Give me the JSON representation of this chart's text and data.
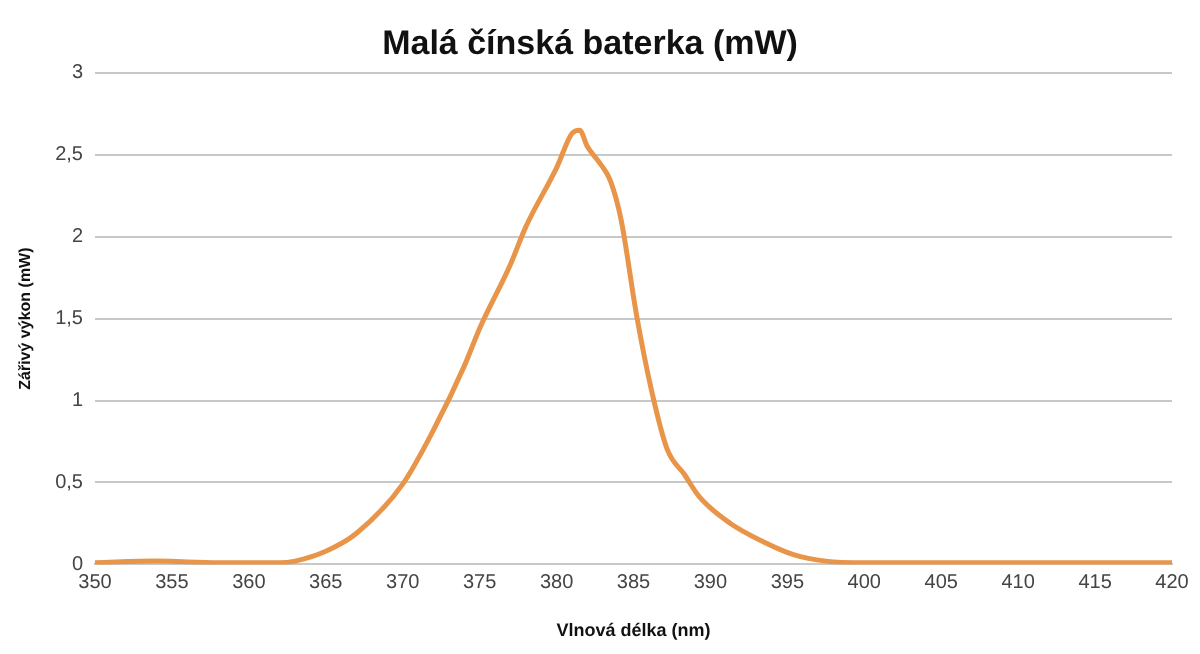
{
  "chart_data": {
    "type": "line",
    "title": "Malá čínská baterka (mW)",
    "xlabel": "Vlnová délka (nm)",
    "ylabel": "Zářivý výkon (mW)",
    "xlim": [
      350,
      420
    ],
    "xticks": [
      350,
      355,
      360,
      365,
      370,
      375,
      380,
      385,
      390,
      395,
      400,
      405,
      410,
      415,
      420
    ],
    "ylim": [
      0,
      3
    ],
    "yticks": [
      0,
      {
        "value": 0.5,
        "label": "0,5"
      },
      1,
      {
        "value": 1.5,
        "label": "1,5"
      },
      2,
      {
        "value": 2.5,
        "label": "2,5"
      },
      3
    ],
    "grid": "y",
    "legend": false,
    "marker": "none",
    "line_style": "solid",
    "series": [
      {
        "color": "#e8954a",
        "x": [
          350,
          354,
          358,
          362,
          363,
          365,
          367,
          370,
          372,
          374,
          375,
          377,
          378,
          380,
          381,
          381.5,
          382,
          382.8,
          383.5,
          384.2,
          385.2,
          386.2,
          387.2,
          388.3,
          389.3,
          391.3,
          393.4,
          395.4,
          397.5,
          400,
          405,
          410,
          415,
          420
        ],
        "values": [
          0.01,
          0.02,
          0.01,
          0.01,
          0.02,
          0.08,
          0.19,
          0.49,
          0.82,
          1.21,
          1.44,
          1.83,
          2.06,
          2.42,
          2.63,
          2.65,
          2.55,
          2.45,
          2.34,
          2.1,
          1.52,
          1.05,
          0.7,
          0.55,
          0.41,
          0.25,
          0.14,
          0.06,
          0.02,
          0.01,
          0.01,
          0.01,
          0.01,
          0.01
        ]
      }
    ]
  }
}
